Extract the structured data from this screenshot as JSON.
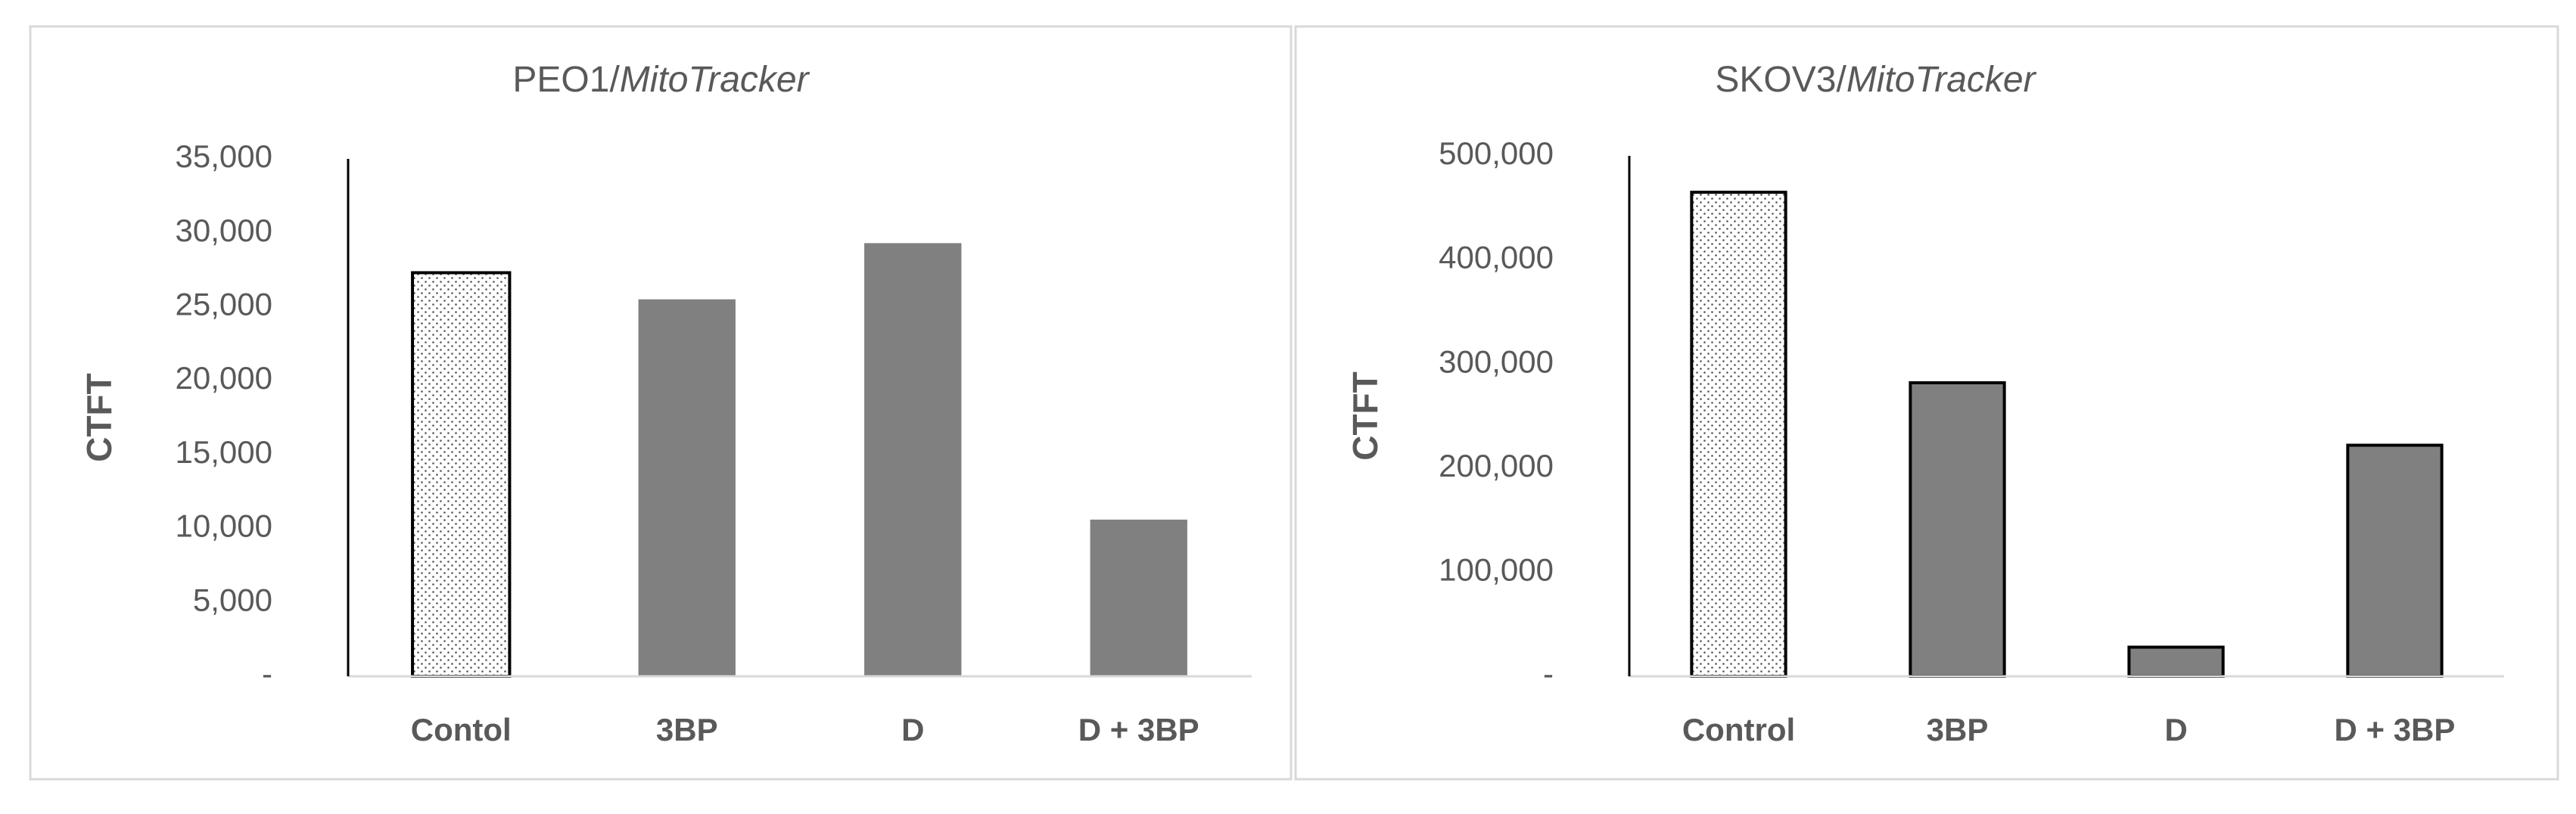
{
  "chart_data": [
    {
      "type": "bar",
      "title_prefix": "PEO1/",
      "title_italic": "MitoTracker",
      "ylabel": "CTFT",
      "categories": [
        "Contol",
        "3BP",
        "D",
        "D + 3BP"
      ],
      "values": [
        27300,
        25500,
        29300,
        10600
      ],
      "colors": [
        "#ffffff",
        "#808080",
        "#808080",
        "#808080"
      ],
      "edgecolors": [
        "#000000",
        "none",
        "none",
        "none"
      ],
      "patterns": [
        "dots",
        "none",
        "none",
        "none"
      ],
      "ylim": [
        0,
        35000
      ],
      "yticks": [
        {
          "value": 0,
          "label": "-"
        },
        {
          "value": 5000,
          "label": "5,000"
        },
        {
          "value": 10000,
          "label": "10,000"
        },
        {
          "value": 15000,
          "label": "15,000"
        },
        {
          "value": 20000,
          "label": "20,000"
        },
        {
          "value": 25000,
          "label": "25,000"
        },
        {
          "value": 30000,
          "label": "30,000"
        },
        {
          "value": 35000,
          "label": "35,000"
        }
      ],
      "grid": false
    },
    {
      "type": "bar",
      "title_prefix": "SKOV3/",
      "title_italic": "MitoTracker",
      "ylabel": "CTFT",
      "categories": [
        "Control",
        "3BP",
        "D",
        "D + 3BP"
      ],
      "values": [
        465000,
        282000,
        28000,
        222000
      ],
      "colors": [
        "#ffffff",
        "#808080",
        "#808080",
        "#808080"
      ],
      "edgecolors": [
        "#000000",
        "#000000",
        "#000000",
        "#000000"
      ],
      "patterns": [
        "dots",
        "none",
        "none",
        "none"
      ],
      "ylim": [
        0,
        500000
      ],
      "yticks": [
        {
          "value": 0,
          "label": "-"
        },
        {
          "value": 100000,
          "label": "100,000"
        },
        {
          "value": 200000,
          "label": "200,000"
        },
        {
          "value": 300000,
          "label": "300,000"
        },
        {
          "value": 400000,
          "label": "400,000"
        },
        {
          "value": 500000,
          "label": "500,000"
        }
      ],
      "grid": false
    }
  ]
}
